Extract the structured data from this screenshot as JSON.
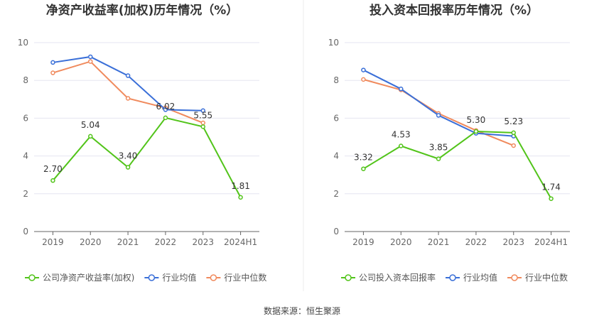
{
  "source_label": "数据来源：恒生聚源",
  "chart_data": [
    {
      "type": "line",
      "title": "净资产收益率(加权)历年情况（%）",
      "categories": [
        "2019",
        "2020",
        "2021",
        "2022",
        "2023",
        "2024H1"
      ],
      "ylim": [
        0,
        10
      ],
      "yticks": [
        0,
        2,
        4,
        6,
        8,
        10
      ],
      "grid": true,
      "legend_position": "bottom",
      "series": [
        {
          "name": "公司净资产收益率(加权)",
          "color": "#52c41a",
          "values": [
            2.7,
            5.04,
            3.4,
            6.02,
            5.55,
            1.81
          ],
          "labels": [
            "2.70",
            "5.04",
            "3.40",
            "6.02",
            "5.55",
            "1.81"
          ]
        },
        {
          "name": "行业均值",
          "color": "#3a6fd8",
          "values": [
            8.95,
            9.25,
            8.25,
            6.45,
            6.4,
            null
          ]
        },
        {
          "name": "行业中位数",
          "color": "#f08a5d",
          "values": [
            8.4,
            9.0,
            7.05,
            6.55,
            5.75,
            null
          ]
        }
      ]
    },
    {
      "type": "line",
      "title": "投入资本回报率历年情况（%）",
      "categories": [
        "2019",
        "2020",
        "2021",
        "2022",
        "2023",
        "2024H1"
      ],
      "ylim": [
        0,
        10
      ],
      "yticks": [
        0,
        2,
        4,
        6,
        8,
        10
      ],
      "grid": true,
      "legend_position": "bottom",
      "series": [
        {
          "name": "公司投入资本回报率",
          "color": "#52c41a",
          "values": [
            3.32,
            4.53,
            3.85,
            5.3,
            5.23,
            1.74
          ],
          "labels": [
            "3.32",
            "4.53",
            "3.85",
            "5.30",
            "5.23",
            "1.74"
          ]
        },
        {
          "name": "行业均值",
          "color": "#3a6fd8",
          "values": [
            8.55,
            7.55,
            6.15,
            5.2,
            5.05,
            null
          ]
        },
        {
          "name": "行业中位数",
          "color": "#f08a5d",
          "values": [
            8.05,
            7.5,
            6.25,
            5.35,
            4.55,
            null
          ]
        }
      ]
    }
  ]
}
